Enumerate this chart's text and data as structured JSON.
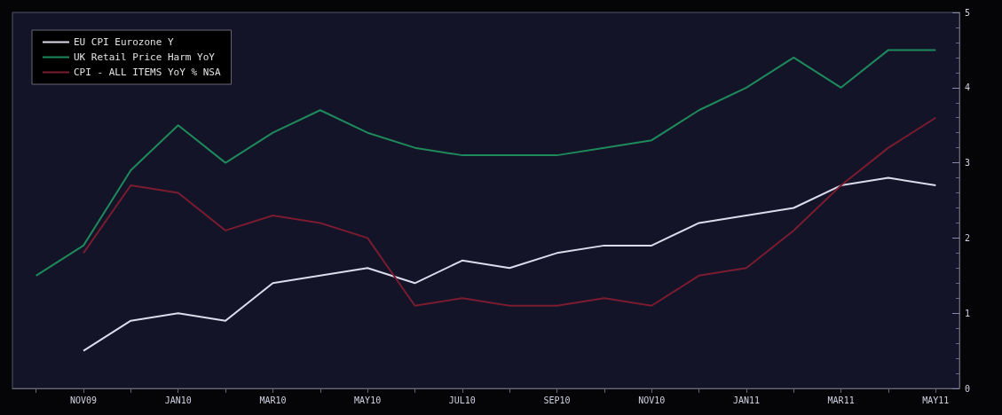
{
  "chart_data": {
    "type": "line",
    "categories": [
      null,
      "NOV09",
      null,
      "JAN10",
      null,
      "MAR10",
      null,
      "MAY10",
      null,
      "JUL10",
      null,
      "SEP10",
      null,
      "NOV10",
      null,
      "JAN11",
      null,
      "MAR11",
      null,
      "MAY11"
    ],
    "series": [
      {
        "name": "EU CPI Eurozone Y",
        "color": "#dcdcec",
        "values": [
          null,
          0.5,
          0.9,
          1.0,
          0.9,
          1.4,
          1.5,
          1.6,
          1.4,
          1.7,
          1.6,
          1.8,
          1.9,
          1.9,
          2.2,
          2.3,
          2.4,
          2.7,
          2.8,
          2.7
        ]
      },
      {
        "name": "UK Retail Price Harm YoY",
        "color": "#1e8a5c",
        "values": [
          1.5,
          1.9,
          2.9,
          3.5,
          3.0,
          3.4,
          3.7,
          3.4,
          3.2,
          3.1,
          3.1,
          3.1,
          3.2,
          3.3,
          3.7,
          4.0,
          4.4,
          4.0,
          4.5,
          4.5
        ]
      },
      {
        "name": "CPI - ALL ITEMS YoY % NSA",
        "color": "#7a1c30",
        "values": [
          null,
          1.8,
          2.7,
          2.6,
          2.1,
          2.3,
          2.2,
          2.0,
          1.1,
          1.2,
          1.1,
          1.1,
          1.2,
          1.1,
          1.5,
          1.6,
          2.1,
          2.7,
          3.2,
          3.6
        ]
      }
    ],
    "ylim": [
      0,
      5
    ],
    "yticks": [
      0,
      1,
      2,
      3,
      4,
      5
    ],
    "grid": false,
    "legend": "top left",
    "marker": "none",
    "line_style": "solid"
  }
}
